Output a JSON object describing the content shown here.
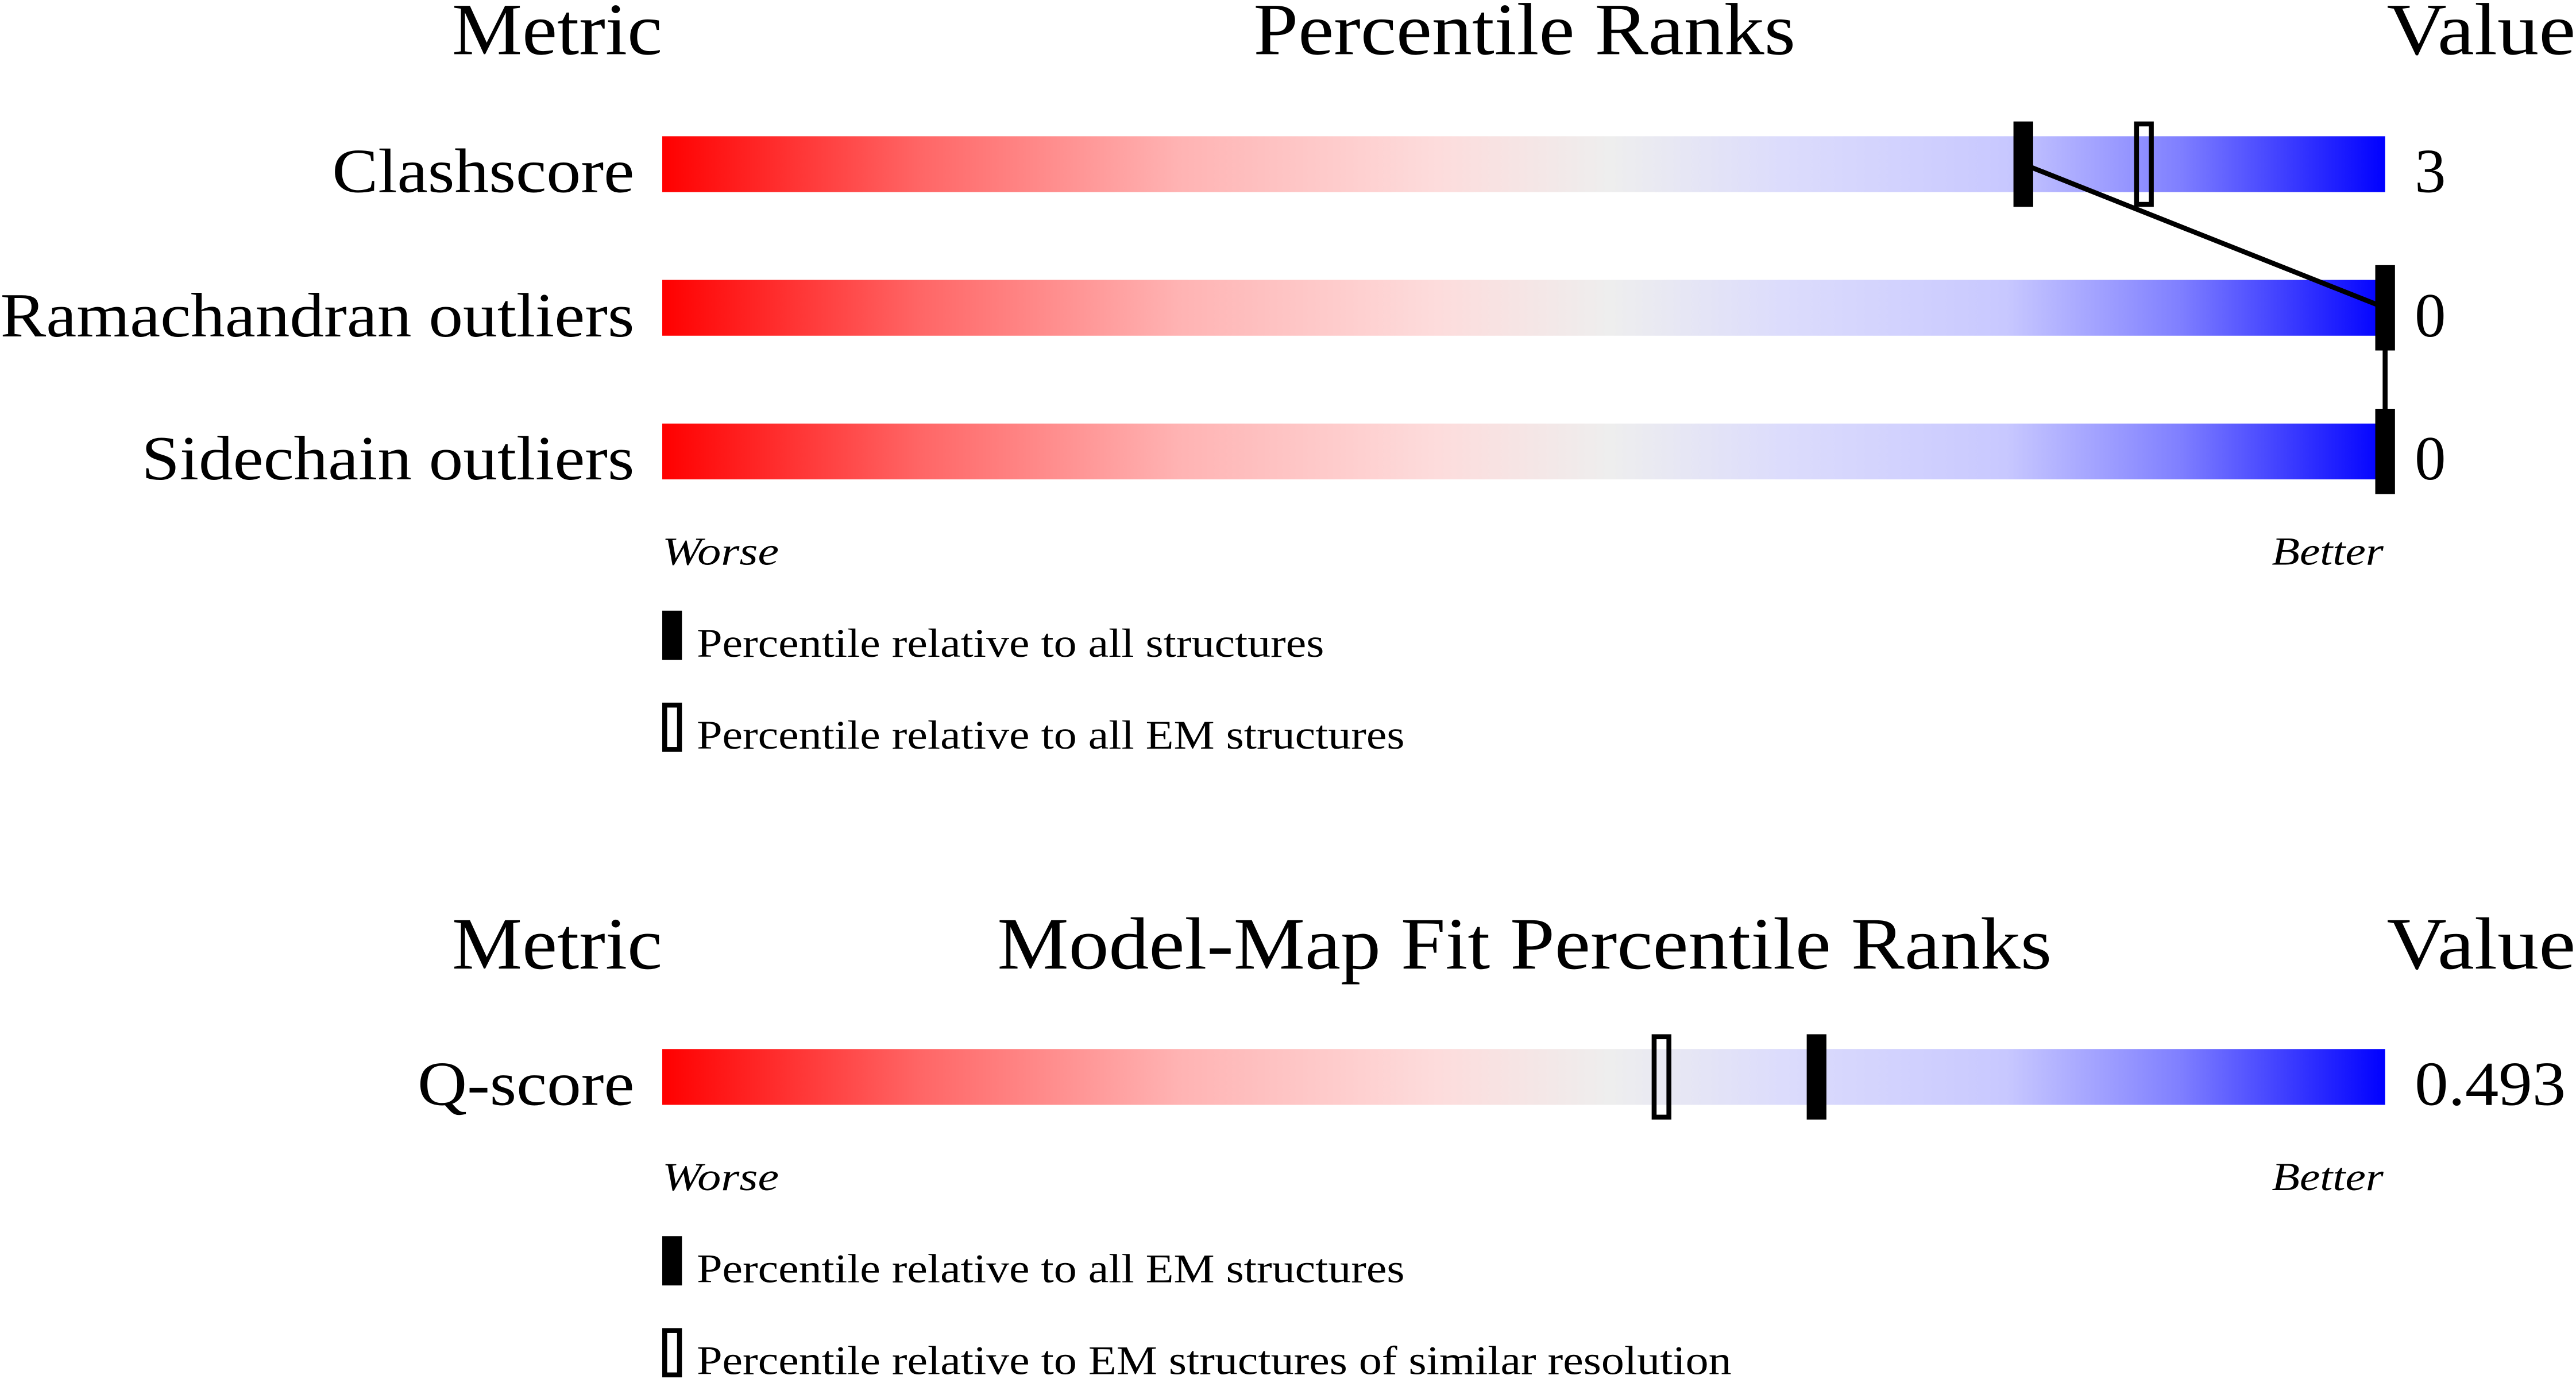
{
  "chart_data": [
    {
      "type": "bar",
      "title": "Percentile Ranks",
      "header_metric": "Metric",
      "header_value": "Value",
      "axis_min_label": "Worse",
      "axis_max_label": "Better",
      "xlim": [
        0,
        100
      ],
      "metrics": [
        {
          "name": "Clashscore",
          "value": "3",
          "percentile_all": 79,
          "percentile_em": 86
        },
        {
          "name": "Ramachandran outliers",
          "value": "0",
          "percentile_all": 100
        },
        {
          "name": "Sidechain outliers",
          "value": "0",
          "percentile_all": 100
        }
      ],
      "legend": [
        {
          "marker": "filled",
          "label": "Percentile relative to all structures"
        },
        {
          "marker": "open",
          "label": "Percentile relative to all EM structures"
        }
      ]
    },
    {
      "type": "bar",
      "title": "Model-Map Fit Percentile Ranks",
      "header_metric": "Metric",
      "header_value": "Value",
      "axis_min_label": "Worse",
      "axis_max_label": "Better",
      "xlim": [
        0,
        100
      ],
      "metrics": [
        {
          "name": "Q-score",
          "value": "0.493",
          "percentile_all": 67,
          "percentile_em": 58
        }
      ],
      "legend": [
        {
          "marker": "filled",
          "label": "Percentile relative to all EM structures"
        },
        {
          "marker": "open",
          "label": "Percentile relative to EM structures of similar resolution"
        }
      ]
    }
  ],
  "colors": {
    "worse": "#ff0000",
    "neutral": "#eeeeee",
    "better": "#0000ff",
    "marker": "#000000"
  }
}
